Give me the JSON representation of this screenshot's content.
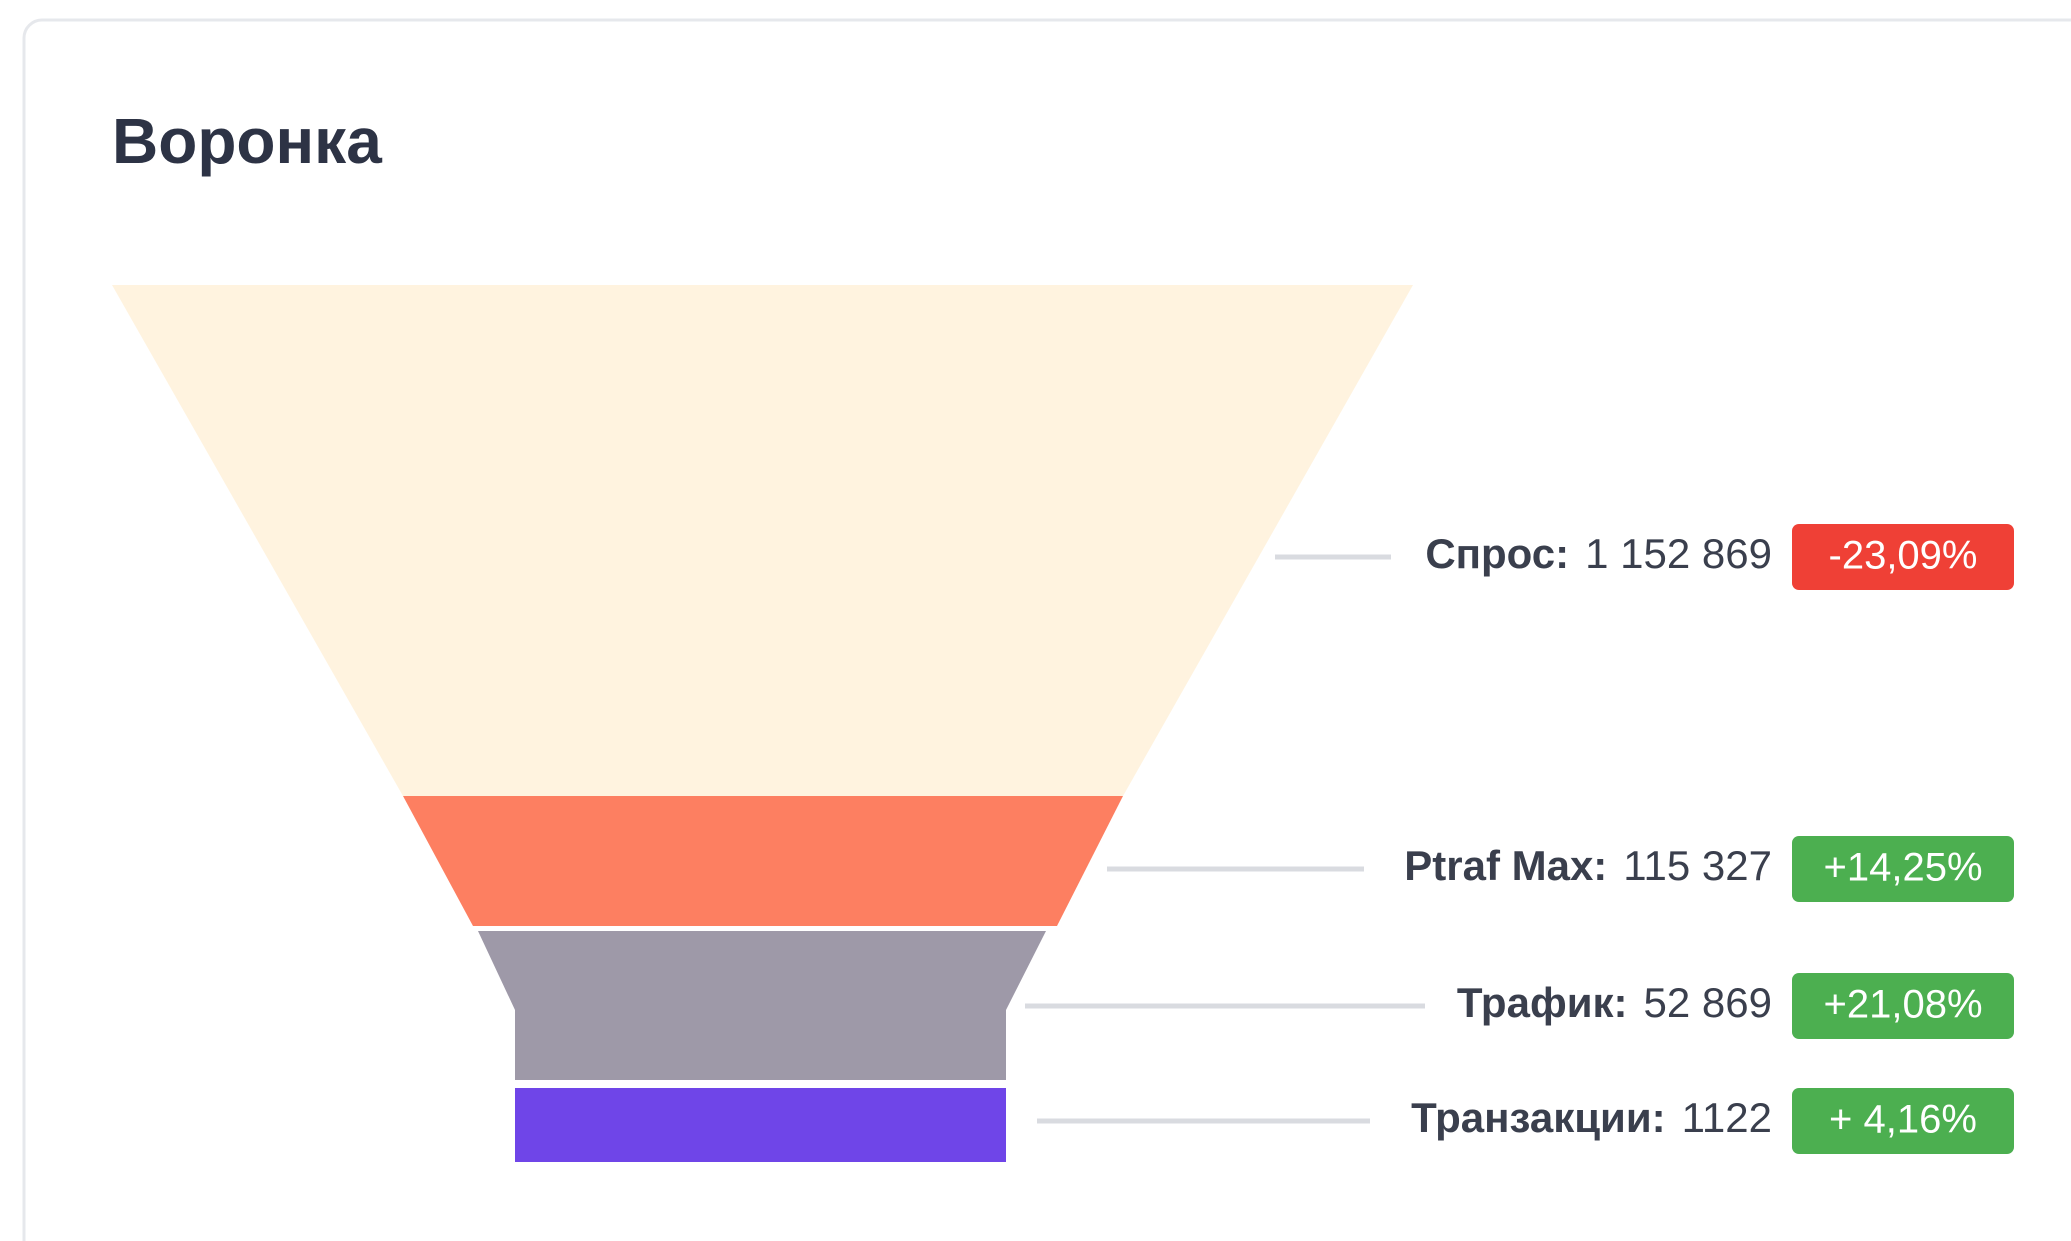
{
  "chart_data": {
    "type": "funnel",
    "title": "Воронка",
    "categories": [
      "Спрос:",
      "Ptraf Max:",
      "Трафик:",
      "Транзакции:"
    ],
    "values": [
      1152869,
      115327,
      52869,
      1122
    ],
    "value_labels": [
      "1 152 869",
      "115 327",
      "52 869",
      "1122"
    ],
    "colors": [
      "#fff3df",
      "#fd7f61",
      "#9e99a8",
      "#6f45e8"
    ],
    "changes": [
      -23.09,
      14.25,
      21.08,
      4.16
    ],
    "change_labels": [
      "-23,09%",
      "+14,25%",
      "+21,08%",
      "+ 4,16%"
    ],
    "negative_color": "#ef4036",
    "positive_color": "#4caf50"
  }
}
